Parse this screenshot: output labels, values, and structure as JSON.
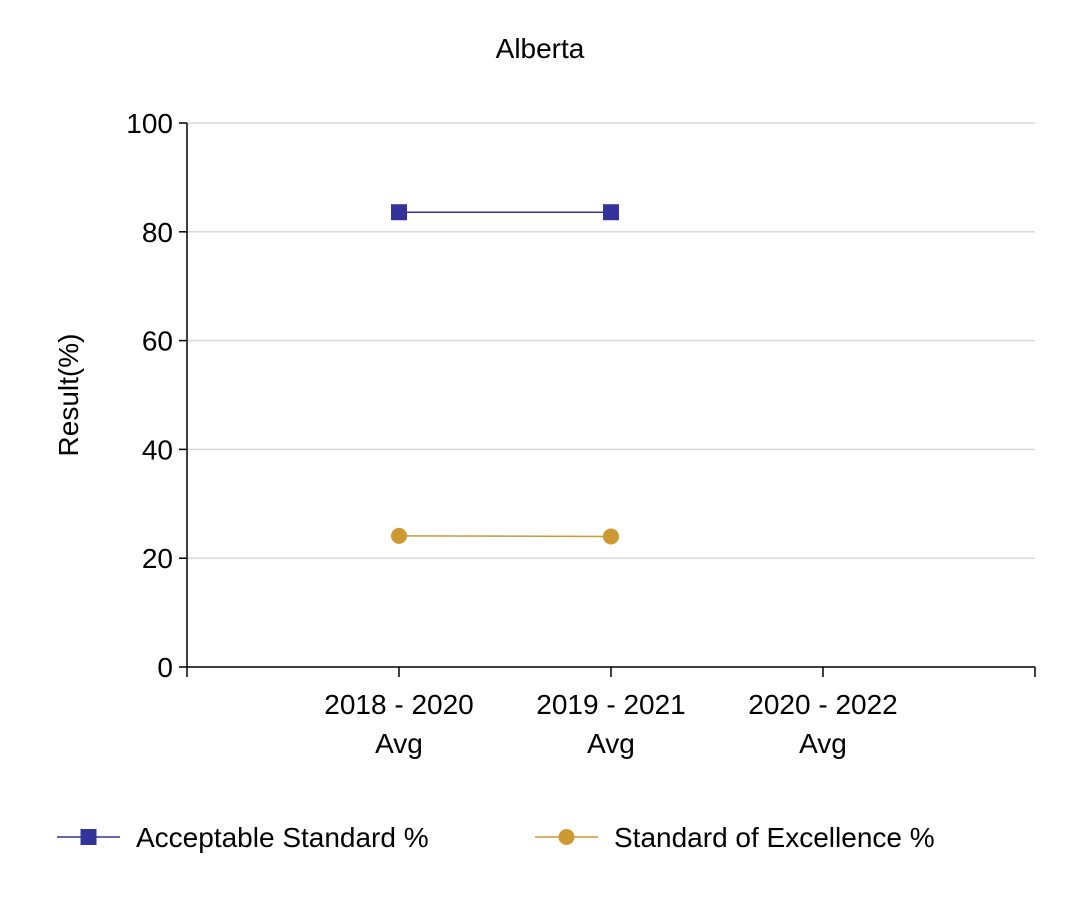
{
  "chart_data": {
    "type": "line",
    "title": "Alberta",
    "ylabel": "Result(%)",
    "xlabel": "",
    "categories": [
      [
        "2018 - 2020",
        "Avg"
      ],
      [
        "2019 - 2021",
        "Avg"
      ],
      [
        "2020 - 2022",
        "Avg"
      ]
    ],
    "ylim": [
      0,
      100
    ],
    "yticks": [
      "0",
      "20",
      "40",
      "60",
      "80",
      "100"
    ],
    "ytick_values": [
      0,
      20,
      40,
      60,
      80,
      100
    ],
    "grid": true,
    "legend_position": "bottom",
    "series": [
      {
        "name": "Acceptable Standard %",
        "values": [
          83.6,
          83.6,
          null
        ],
        "color": "#333399",
        "marker": "square"
      },
      {
        "name": "Standard of Excellence %",
        "values": [
          24.1,
          24.0,
          null
        ],
        "color": "#CC9933",
        "marker": "circle"
      }
    ]
  }
}
